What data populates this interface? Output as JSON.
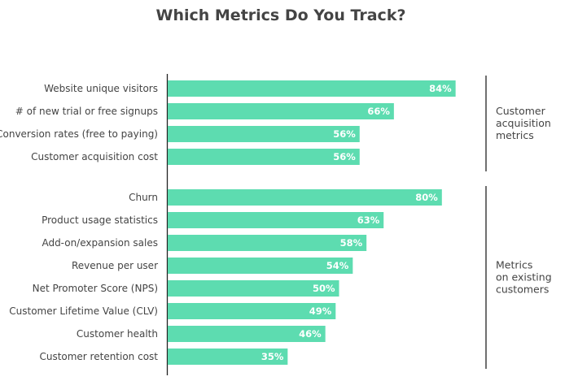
{
  "colors": {
    "bar": "#5ddcb0",
    "value_text": "#ffffff",
    "label_text": "#444444",
    "axis": "#222222"
  },
  "chart_data": {
    "type": "bar",
    "orientation": "horizontal",
    "title": "Which Metrics Do You Track?",
    "xlabel": "",
    "ylabel": "",
    "xlim": [
      0,
      100
    ],
    "unit": "%",
    "grid": false,
    "legend": "none",
    "groups": [
      {
        "name_lines": [
          "Customer",
          "acquisition",
          "metrics"
        ],
        "categories": [
          "Website unique visitors",
          "# of new trial or free signups",
          "Conversion rates (free to paying)",
          "Customer acquisition cost"
        ],
        "values": [
          84,
          66,
          56,
          56
        ],
        "labels": [
          "84%",
          "66%",
          "56%",
          "56%"
        ]
      },
      {
        "name_lines": [
          "Metrics",
          "on existing",
          "customers"
        ],
        "categories": [
          "Churn",
          "Product usage statistics",
          "Add-on/expansion sales",
          "Revenue per user",
          "Net Promoter Score (NPS)",
          "Customer Lifetime Value (CLV)",
          "Customer health",
          "Customer retention cost"
        ],
        "values": [
          80,
          63,
          58,
          54,
          50,
          49,
          46,
          35
        ],
        "labels": [
          "80%",
          "63%",
          "58%",
          "54%",
          "50%",
          "49%",
          "46%",
          "35%"
        ]
      }
    ]
  }
}
